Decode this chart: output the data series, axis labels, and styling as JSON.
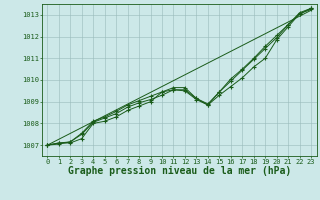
{
  "title": "Graphe pression niveau de la mer (hPa)",
  "xlabel_hours": [
    0,
    1,
    2,
    3,
    4,
    5,
    6,
    7,
    8,
    9,
    10,
    11,
    12,
    13,
    14,
    15,
    16,
    17,
    18,
    19,
    20,
    21,
    22,
    23
  ],
  "line1": [
    1007.0,
    1007.1,
    1007.1,
    1007.3,
    1008.0,
    1008.1,
    1008.3,
    1008.6,
    1008.8,
    1009.0,
    1009.45,
    1009.55,
    1009.5,
    1009.1,
    1008.85,
    1009.3,
    1009.7,
    1010.1,
    1010.6,
    1011.0,
    1011.85,
    1012.45,
    1013.05,
    1013.25
  ],
  "line2": [
    1007.0,
    1007.1,
    1007.15,
    1007.5,
    1008.05,
    1008.25,
    1008.45,
    1008.75,
    1008.95,
    1009.1,
    1009.3,
    1009.55,
    1009.55,
    1009.15,
    1008.85,
    1009.45,
    1009.95,
    1010.45,
    1010.95,
    1011.45,
    1011.95,
    1012.55,
    1013.05,
    1013.3
  ],
  "line3": [
    1007.0,
    1007.05,
    1007.15,
    1007.55,
    1008.1,
    1008.3,
    1008.55,
    1008.85,
    1009.05,
    1009.25,
    1009.45,
    1009.65,
    1009.65,
    1009.15,
    1008.9,
    1009.45,
    1010.05,
    1010.5,
    1011.0,
    1011.55,
    1012.05,
    1012.55,
    1013.1,
    1013.3
  ],
  "line4_straight": [
    1007.0,
    1007.27,
    1007.54,
    1007.81,
    1008.08,
    1008.35,
    1008.62,
    1008.89,
    1009.16,
    1009.43,
    1009.7,
    1009.97,
    1010.24,
    1010.51,
    1010.78,
    1011.05,
    1011.32,
    1011.59,
    1011.86,
    1012.13,
    1012.4,
    1012.67,
    1012.94,
    1013.21
  ],
  "ylim": [
    1006.5,
    1013.5
  ],
  "yticks": [
    1007,
    1008,
    1009,
    1010,
    1011,
    1012,
    1013
  ],
  "xlim": [
    -0.5,
    23.5
  ],
  "line_color": "#1a5c1a",
  "bg_color": "#cce8e8",
  "grid_color": "#99bbbb",
  "text_color": "#1a5c1a",
  "title_fontsize": 7,
  "tick_fontsize": 5,
  "fig_width": 3.2,
  "fig_height": 2.0,
  "dpi": 100
}
